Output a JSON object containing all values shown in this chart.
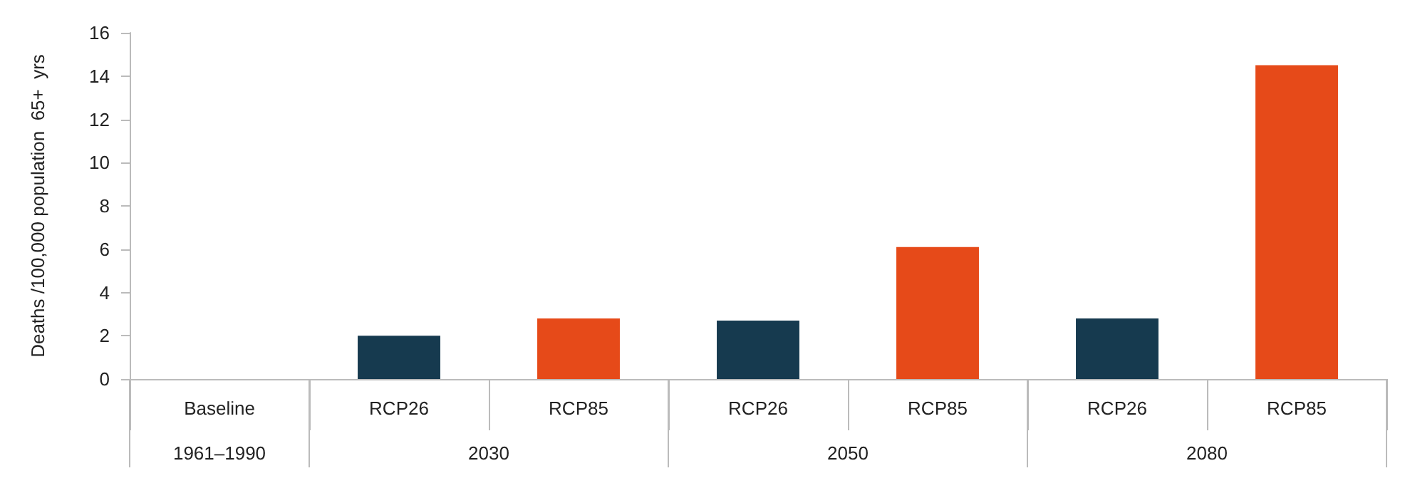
{
  "chart_data": {
    "type": "bar",
    "ylabel": "Deaths /100,000 population  65+  yrs",
    "categories": [
      "Baseline",
      "RCP26",
      "RCP85",
      "RCP26",
      "RCP85",
      "RCP26",
      "RCP85"
    ],
    "values": [
      0,
      2.0,
      2.8,
      2.7,
      6.1,
      2.8,
      14.5
    ],
    "colors": [
      "#163a4f",
      "#163a4f",
      "#e64a19",
      "#163a4f",
      "#e64a19",
      "#163a4f",
      "#e64a19"
    ],
    "ylim": [
      0,
      16
    ],
    "yticks": [
      0,
      2,
      4,
      6,
      8,
      10,
      12,
      14,
      16
    ],
    "annotations": [
      "1961–1990",
      "2030",
      "2050",
      "2080"
    ]
  }
}
